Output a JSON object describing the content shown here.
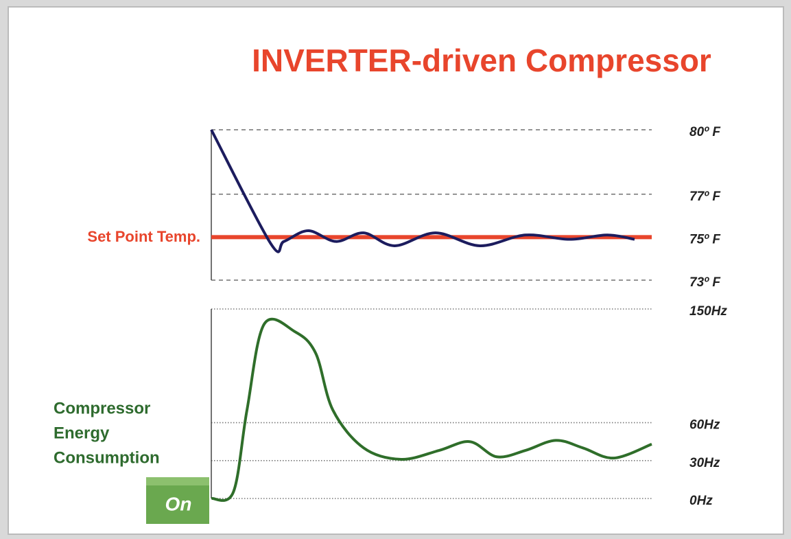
{
  "title": "INVERTER-driven Compressor",
  "button": "On",
  "chart_data": [
    {
      "type": "line",
      "setpoint": {
        "label": "Set Point Temp.",
        "value": 75,
        "color": "#e8452c"
      },
      "xlim": [
        0,
        100
      ],
      "ylim": [
        73,
        80
      ],
      "yticks": [
        {
          "value": 80,
          "label": "80º F"
        },
        {
          "value": 77,
          "label": "77º F"
        },
        {
          "value": 75,
          "label": "75º F"
        },
        {
          "value": 73,
          "label": "73º F"
        }
      ],
      "grid": "dashed",
      "series": [
        {
          "color": "#1c1c5e",
          "x": [
            0,
            13.5,
            16.5,
            22,
            28.3,
            34.6,
            41.6,
            50.9,
            61,
            71.3,
            81.3,
            89.9,
            96.1
          ],
          "values": [
            80,
            74.7,
            74.8,
            75.3,
            74.8,
            75.2,
            74.6,
            75.2,
            74.6,
            75.1,
            74.9,
            75.1,
            74.9
          ]
        }
      ]
    },
    {
      "type": "line",
      "annotation": [
        "Compressor",
        "Energy",
        "Consumption"
      ],
      "annotation_color": "#2e6b2e",
      "xlim": [
        0,
        100
      ],
      "ylim": [
        0,
        150
      ],
      "yticks": [
        {
          "value": 150,
          "label": "150Hz"
        },
        {
          "value": 60,
          "label": "60Hz"
        },
        {
          "value": 30,
          "label": "30Hz"
        },
        {
          "value": 0,
          "label": "0Hz"
        }
      ],
      "grid": "dotted",
      "series": [
        {
          "color": "#2f6e2a",
          "x": [
            0,
            5,
            8.1,
            12,
            19,
            23.7,
            27.6,
            34.6,
            43.1,
            51.7,
            58.7,
            64.8,
            71.3,
            78.2,
            84.4,
            91.4,
            100
          ],
          "values": [
            0,
            5,
            70,
            138,
            132,
            115,
            70,
            40,
            31,
            38,
            45,
            33,
            38,
            46,
            40,
            32,
            43
          ]
        }
      ]
    }
  ]
}
